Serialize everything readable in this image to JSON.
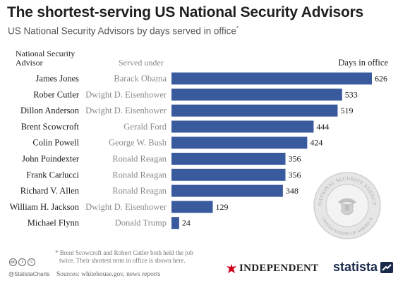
{
  "header": {
    "title": "The shortest-serving US National Security Advisors",
    "subtitle": "US National Security Advisors by days served in office",
    "subtitle_mark": "*"
  },
  "columns": {
    "advisor": [
      "National Security",
      "Advisor"
    ],
    "served_under": "Served under",
    "days": "Days in office"
  },
  "chart_data": {
    "type": "bar",
    "orientation": "horizontal",
    "categories": [
      "James Jones",
      "Rober Cutler",
      "Dillon Anderson",
      "Brent Scowcroft",
      "Colin Powell",
      "John Poindexter",
      "Frank Carlucci",
      "Richard V. Allen",
      "William H. Jackson",
      "Michael Flynn"
    ],
    "served_under": [
      "Barack Obama",
      "Dwight D. Eisenhower",
      "Dwight D. Eisenhower",
      "Gerald Ford",
      "George W. Bush",
      "Ronald Reagan",
      "Ronald Reagan",
      "Ronald Reagan",
      "Dwight D. Eisenhower",
      "Donald Trump"
    ],
    "values": [
      626,
      533,
      519,
      444,
      424,
      356,
      356,
      348,
      129,
      24
    ],
    "data_labels": [
      "626",
      "533",
      "519",
      "444",
      "424",
      "356",
      "356",
      "348",
      "129",
      "24"
    ],
    "xlim": [
      0,
      626
    ],
    "grid": false,
    "legend": "none",
    "bar_color": "#3a5a9e"
  },
  "footnote": [
    "* Brent Scowcroft and Robert Cutler both held the job",
    "twice. Their shortest term in office is shown here."
  ],
  "sources": "Sources: whitehouse.gov, news reports",
  "branding": {
    "handle": "@StatistaCharts",
    "partner": "INDEPENDENT",
    "statista": "statista",
    "seal_top": "NATIONAL SECURITY AGENCY",
    "seal_bottom": "UNITED STATES OF AMERICA"
  },
  "colors": {
    "bar": "#3a5a9e",
    "label_primary": "#1a1a1a",
    "label_secondary": "#8a8a8a",
    "partner_accent": "#d0021b",
    "statista_navy": "#1a2a4a"
  }
}
